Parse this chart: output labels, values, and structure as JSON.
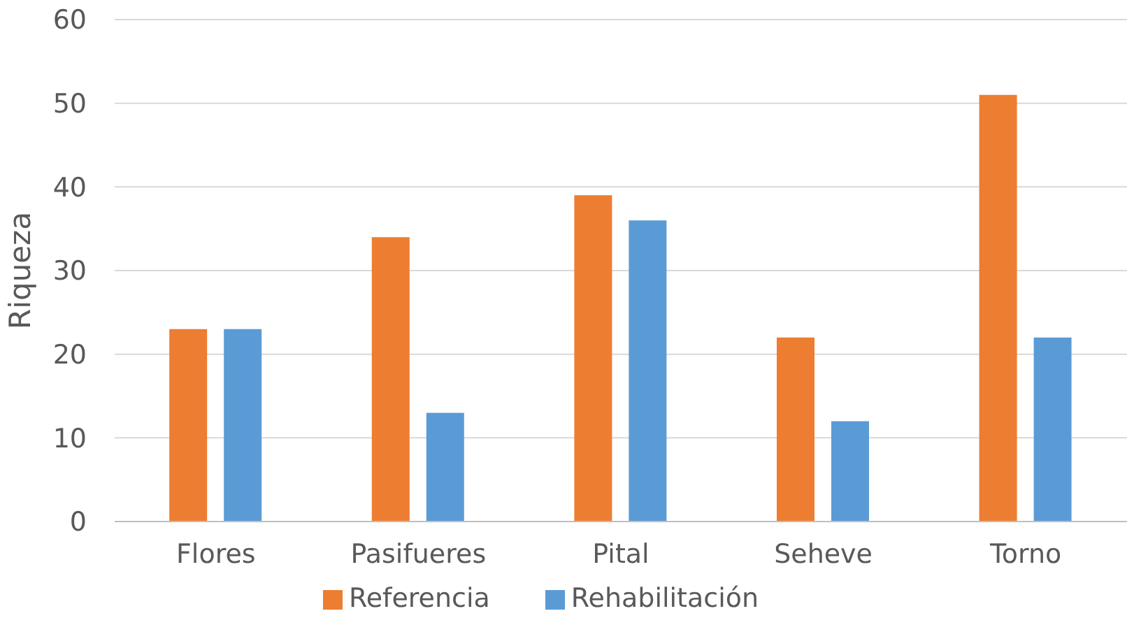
{
  "chart_data": {
    "type": "bar",
    "ylabel": "Riqueza",
    "categories": [
      "Flores",
      "Pasifueres",
      "Pital",
      "Seheve",
      "Torno"
    ],
    "series": [
      {
        "name": "Referencia",
        "color": "#ed7d31",
        "values": [
          23,
          34,
          39,
          22,
          51
        ]
      },
      {
        "name": "Rehabilitación",
        "color": "#5b9bd5",
        "values": [
          23,
          13,
          36,
          12,
          22
        ]
      }
    ],
    "ylim": [
      0,
      60
    ],
    "yticks": [
      0,
      10,
      20,
      30,
      40,
      50,
      60
    ],
    "grid": "y",
    "legend": "bottom"
  }
}
